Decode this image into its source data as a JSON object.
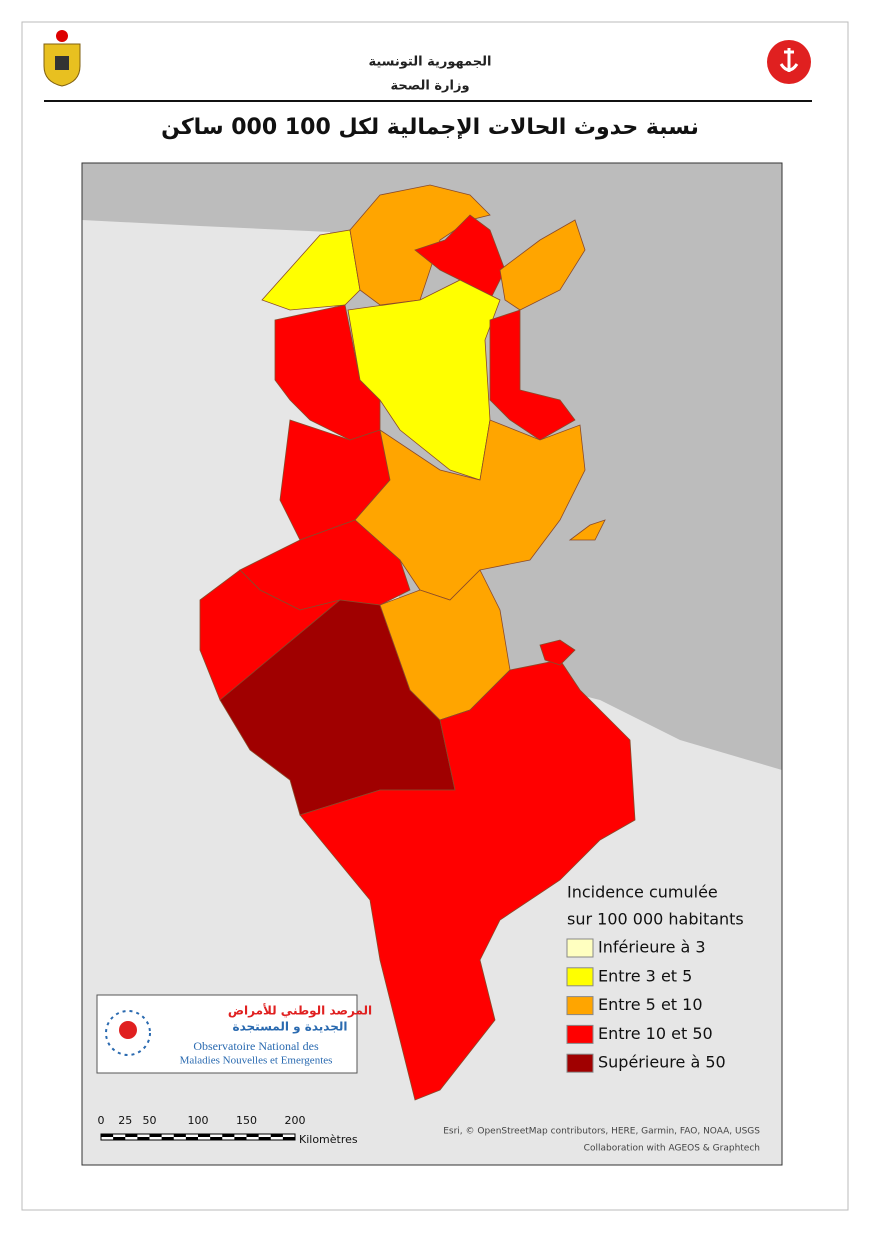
{
  "header": {
    "republic": "الجمهورية التونسية",
    "ministry": "وزارة الصحة",
    "title": "نسبة حدوث الحالات الإجمالية لكل 100 000 ساكن"
  },
  "legend": {
    "title_line1": "Incidence cumulée",
    "title_line2": "sur 100 000 habitants",
    "items": [
      {
        "label": "Inférieure à 3",
        "color": "#ffffc0"
      },
      {
        "label": "Entre 3 et 5",
        "color": "#ffff00"
      },
      {
        "label": "Entre 5 et 10",
        "color": "#ffa500"
      },
      {
        "label": "Entre 10 et 50",
        "color": "#ff0000"
      },
      {
        "label": "Supérieure à 50",
        "color": "#a00000"
      }
    ]
  },
  "logo": {
    "arabic_line1": "المرصد الوطني للأمراض",
    "arabic_line2": "الجديدة و المستجدة",
    "french_line1": "Observatoire National des",
    "french_line2": "Maladies Nouvelles et Emergentes"
  },
  "scale_bar": {
    "ticks": [
      0,
      25,
      50,
      100,
      150,
      200
    ],
    "unit": "Kilomètres"
  },
  "attribution": {
    "line1": "Esri, © OpenStreetMap contributors, HERE, Garmin, FAO, NOAA, USGS",
    "line2": "Collaboration with AGEOS & Graphtech"
  }
}
